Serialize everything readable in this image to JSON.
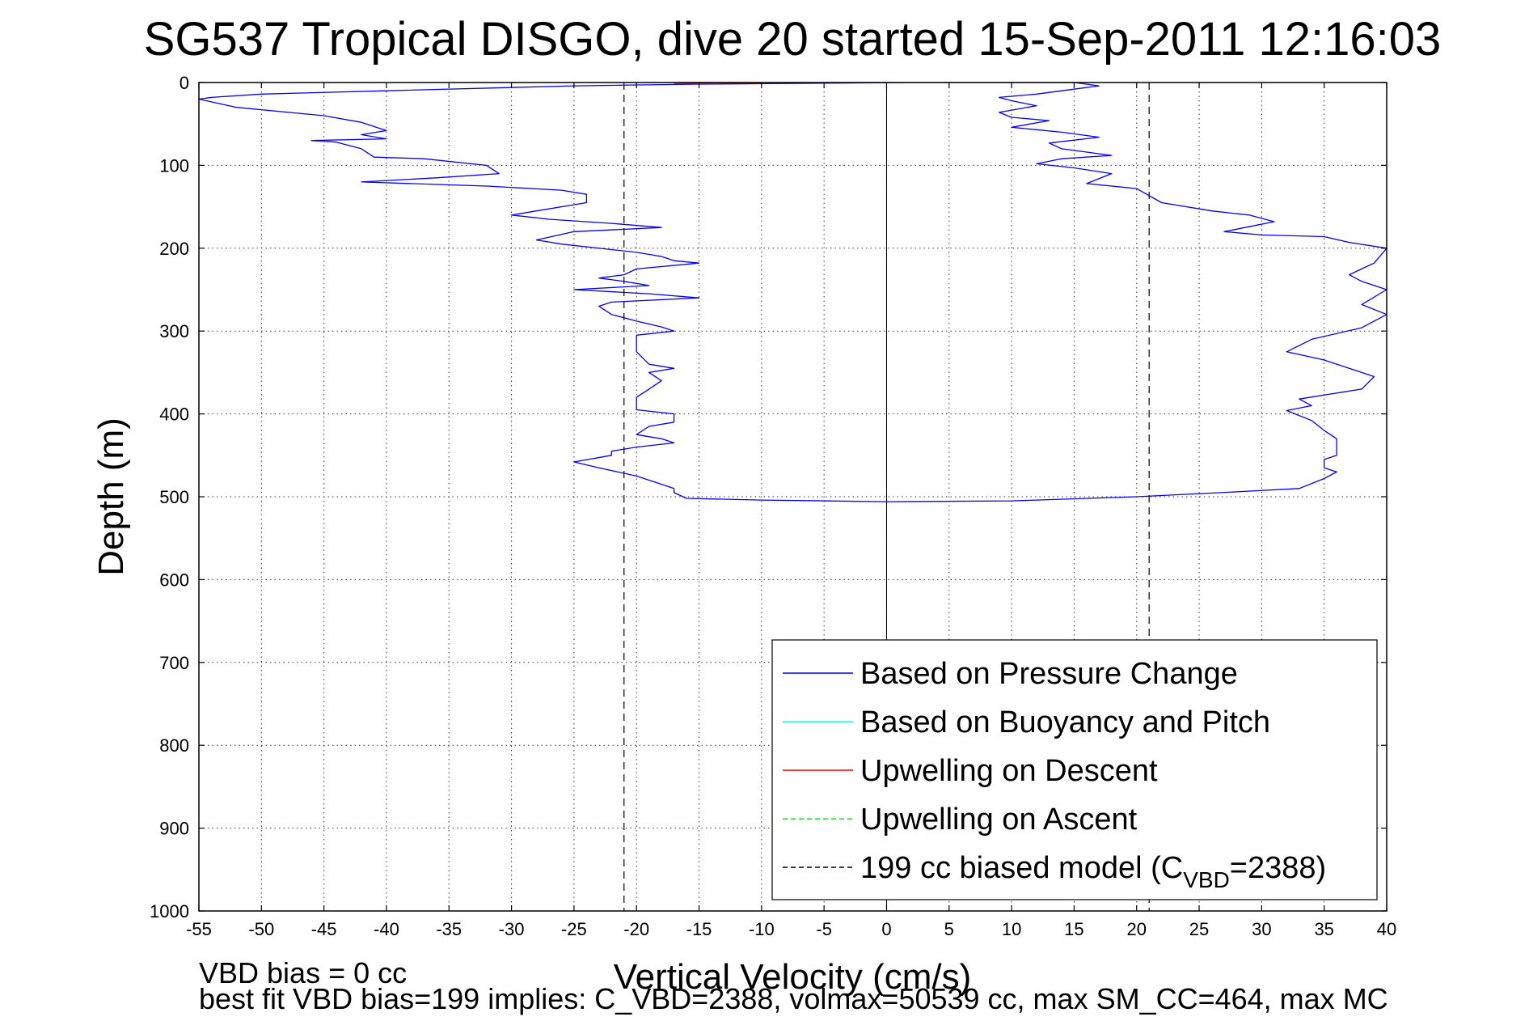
{
  "chart_data": {
    "type": "line",
    "title": "SG537 Tropical DISGO, dive 20 started 15-Sep-2011 12:16:03",
    "xlabel": "Vertical Velocity (cm/s)",
    "ylabel": "Depth (m)",
    "xlim": [
      -55,
      40
    ],
    "ylim": [
      0,
      1000
    ],
    "y_reversed": true,
    "grid": true,
    "legend_position": "bottom-right",
    "x_ticks": [
      "-55",
      "-50",
      "-45",
      "-40",
      "-35",
      "-30",
      "-25",
      "-20",
      "-15",
      "-10",
      "-5",
      "0",
      "5",
      "10",
      "15",
      "20",
      "25",
      "30",
      "35",
      "40"
    ],
    "y_ticks": [
      "0",
      "100",
      "200",
      "300",
      "400",
      "500",
      "600",
      "700",
      "800",
      "900",
      "1000"
    ],
    "legend": [
      {
        "label": "Based on Pressure Change",
        "color": "#0000ff",
        "dash": "solid"
      },
      {
        "label": "Based on Buoyancy and Pitch",
        "color": "#00ffff",
        "dash": "solid"
      },
      {
        "label": "Upwelling on Descent",
        "color": "#ff0000",
        "dash": "solid"
      },
      {
        "label": "Upwelling on Ascent",
        "color": "#00ff00",
        "dash": "dashed"
      },
      {
        "label": "199 cc biased model (C",
        "sub": "VBD",
        "suffix": "=2388)",
        "color": "#000000",
        "dash": "dashed"
      }
    ],
    "series": [
      {
        "name": "Based on Pressure Change",
        "color": "#0000ff",
        "points": [
          [
            2,
            0
          ],
          [
            -15,
            2
          ],
          [
            -25,
            4
          ],
          [
            -40,
            10
          ],
          [
            -50,
            14
          ],
          [
            -54,
            18
          ],
          [
            -55,
            20
          ],
          [
            -52,
            30
          ],
          [
            -45,
            40
          ],
          [
            -42,
            48
          ],
          [
            -40,
            58
          ],
          [
            -42,
            63
          ],
          [
            -40,
            68
          ],
          [
            -46,
            70
          ],
          [
            -44,
            72
          ],
          [
            -42,
            80
          ],
          [
            -41,
            90
          ],
          [
            -37,
            92
          ],
          [
            -32,
            100
          ],
          [
            -31,
            110
          ],
          [
            -36,
            115
          ],
          [
            -42,
            120
          ],
          [
            -32,
            125
          ],
          [
            -26,
            130
          ],
          [
            -24,
            135
          ],
          [
            -24,
            145
          ],
          [
            -28,
            155
          ],
          [
            -30,
            160
          ],
          [
            -27,
            165
          ],
          [
            -22,
            170
          ],
          [
            -18,
            175
          ],
          [
            -25,
            180
          ],
          [
            -28,
            190
          ],
          [
            -26,
            195
          ],
          [
            -20,
            205
          ],
          [
            -18,
            210
          ],
          [
            -17,
            215
          ],
          [
            -15,
            218
          ],
          [
            -20,
            225
          ],
          [
            -21,
            232
          ],
          [
            -23,
            236
          ],
          [
            -21,
            240
          ],
          [
            -19,
            245
          ],
          [
            -25,
            250
          ],
          [
            -19,
            255
          ],
          [
            -15,
            260
          ],
          [
            -22,
            265
          ],
          [
            -23,
            270
          ],
          [
            -22,
            280
          ],
          [
            -20,
            288
          ],
          [
            -18,
            295
          ],
          [
            -17,
            300
          ],
          [
            -20,
            305
          ],
          [
            -20,
            310
          ],
          [
            -20,
            325
          ],
          [
            -19,
            340
          ],
          [
            -17,
            345
          ],
          [
            -19,
            350
          ],
          [
            -18,
            360
          ],
          [
            -19,
            370
          ],
          [
            -20,
            380
          ],
          [
            -20,
            395
          ],
          [
            -17,
            400
          ],
          [
            -17,
            410
          ],
          [
            -19,
            415
          ],
          [
            -20,
            425
          ],
          [
            -18,
            430
          ],
          [
            -17,
            435
          ],
          [
            -20,
            440
          ],
          [
            -22,
            445
          ],
          [
            -22,
            450
          ],
          [
            -25,
            458
          ],
          [
            -23,
            465
          ],
          [
            -20,
            475
          ],
          [
            -18,
            485
          ],
          [
            -17,
            490
          ],
          [
            -17,
            495
          ],
          [
            -16,
            502
          ],
          [
            -10,
            504
          ],
          [
            0,
            506
          ],
          [
            10,
            505
          ],
          [
            20,
            500
          ],
          [
            28,
            494
          ],
          [
            33,
            490
          ],
          [
            35,
            478
          ],
          [
            36,
            470
          ],
          [
            35,
            465
          ],
          [
            35,
            455
          ],
          [
            36,
            450
          ],
          [
            36,
            440
          ],
          [
            36,
            430
          ],
          [
            35,
            420
          ],
          [
            34,
            408
          ],
          [
            32,
            396
          ],
          [
            34,
            390
          ],
          [
            33,
            382
          ],
          [
            38,
            370
          ],
          [
            39,
            355
          ],
          [
            37,
            345
          ],
          [
            35,
            335
          ],
          [
            32,
            325
          ],
          [
            34,
            310
          ],
          [
            38,
            296
          ],
          [
            40,
            280
          ],
          [
            38,
            268
          ],
          [
            40,
            250
          ],
          [
            38,
            240
          ],
          [
            37,
            232
          ],
          [
            38,
            225
          ],
          [
            39,
            218
          ],
          [
            40,
            200
          ],
          [
            37,
            193
          ],
          [
            35,
            186
          ],
          [
            30,
            184
          ],
          [
            27,
            180
          ],
          [
            29,
            174
          ],
          [
            31,
            168
          ],
          [
            29,
            160
          ],
          [
            26,
            155
          ],
          [
            22,
            145
          ],
          [
            20,
            128
          ],
          [
            16,
            122
          ],
          [
            18,
            110
          ],
          [
            15,
            103
          ],
          [
            12,
            98
          ],
          [
            14,
            92
          ],
          [
            18,
            88
          ],
          [
            14,
            80
          ],
          [
            13,
            73
          ],
          [
            17,
            66
          ],
          [
            14,
            60
          ],
          [
            10,
            54
          ],
          [
            13,
            46
          ],
          [
            10,
            42
          ],
          [
            9,
            36
          ],
          [
            12,
            28
          ],
          [
            10,
            22
          ],
          [
            9,
            18
          ],
          [
            12,
            14
          ],
          [
            15,
            8
          ],
          [
            17,
            4
          ],
          [
            15,
            0
          ],
          [
            10,
            0
          ],
          [
            5,
            0
          ],
          [
            2,
            0
          ]
        ]
      },
      {
        "name": "Upwelling on Descent",
        "color": "#ff0000",
        "points": [
          [
            -17,
            1
          ],
          [
            -14,
            0.6
          ],
          [
            -10,
            0.4
          ]
        ]
      }
    ],
    "model_lines": [
      {
        "x": -21,
        "color": "#000000",
        "dash": "dashed"
      },
      {
        "x": 21,
        "color": "#000000",
        "dash": "dashed"
      }
    ],
    "zero_line": {
      "x": 0,
      "color": "#000000"
    }
  },
  "footer": {
    "line1": "VBD bias = 0 cc",
    "line2": "best fit VBD bias=199 implies: C_VBD=2388, volmax=50539 cc, max SM_CC=464, max MC"
  }
}
